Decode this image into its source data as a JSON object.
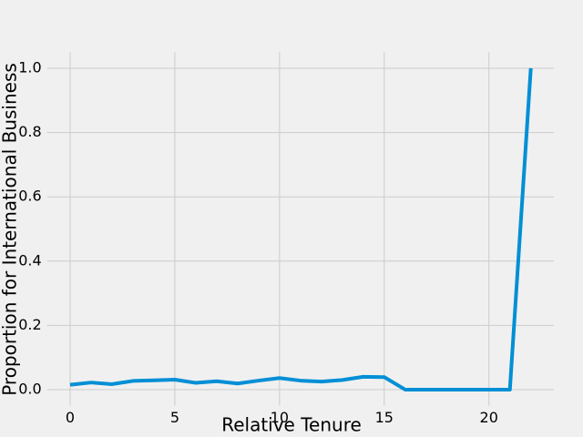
{
  "chart_data": {
    "type": "line",
    "xlabel": "Relative Tenure",
    "ylabel": "Proportion for International Business",
    "x": [
      0,
      1,
      2,
      3,
      4,
      5,
      6,
      7,
      8,
      9,
      10,
      11,
      12,
      13,
      14,
      15,
      16,
      17,
      18,
      19,
      20,
      21,
      22
    ],
    "series": [
      {
        "color": "#008fd5",
        "values": [
          0.015,
          0.022,
          0.017,
          0.027,
          0.029,
          0.031,
          0.021,
          0.026,
          0.019,
          0.028,
          0.036,
          0.028,
          0.025,
          0.03,
          0.04,
          0.039,
          0,
          0,
          0,
          0,
          0,
          0,
          1.0
        ]
      }
    ],
    "xlim": [
      -1.1,
      23.1
    ],
    "ylim": [
      -0.05,
      1.05
    ],
    "xticks": [
      0,
      5,
      10,
      15,
      20
    ],
    "yticks": [
      {
        "value": 0,
        "label": "0.0"
      },
      0.2,
      0.4,
      0.6,
      0.8,
      {
        "value": 1,
        "label": "1.0"
      }
    ],
    "grid": true
  }
}
